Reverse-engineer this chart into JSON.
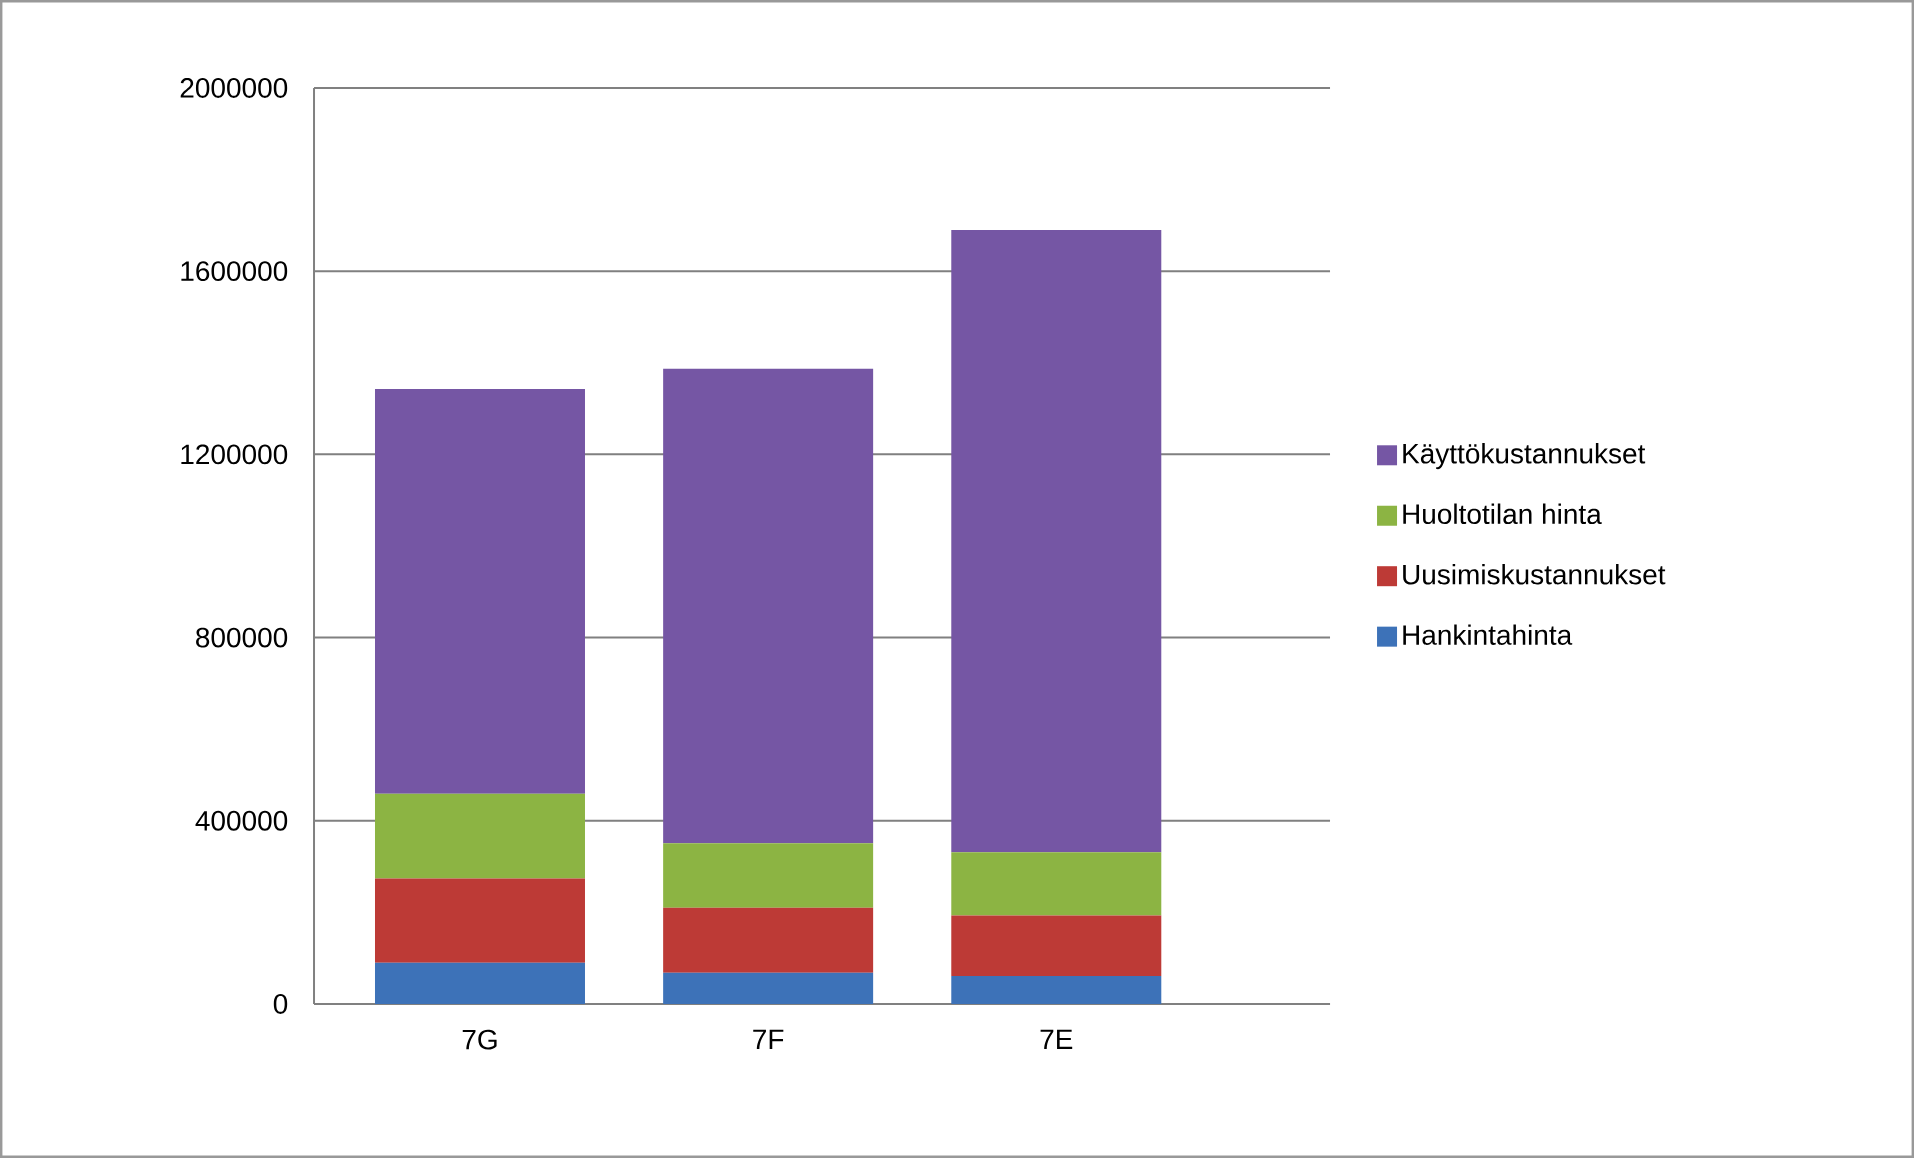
{
  "chart_data": {
    "type": "bar",
    "stacked": true,
    "categories": [
      "7G",
      "7F",
      "7E"
    ],
    "series": [
      {
        "name": "Hankintahinta",
        "color": "#3d72b8",
        "values": [
          90000,
          68000,
          61000
        ]
      },
      {
        "name": "Uusimiskustannukset",
        "color": "#bd3a36",
        "values": [
          184000,
          142000,
          132000
        ]
      },
      {
        "name": "Huoltotilan hinta",
        "color": "#8cb443",
        "values": [
          185000,
          141000,
          138000
        ]
      },
      {
        "name": "Käyttökustannukset",
        "color": "#7556a4",
        "values": [
          884000,
          1036000,
          1359000
        ]
      }
    ],
    "ylim": [
      0,
      2000000
    ],
    "yticks": [
      0,
      400000,
      800000,
      1200000,
      1600000,
      2000000
    ],
    "grid": "y",
    "legend": "right"
  }
}
